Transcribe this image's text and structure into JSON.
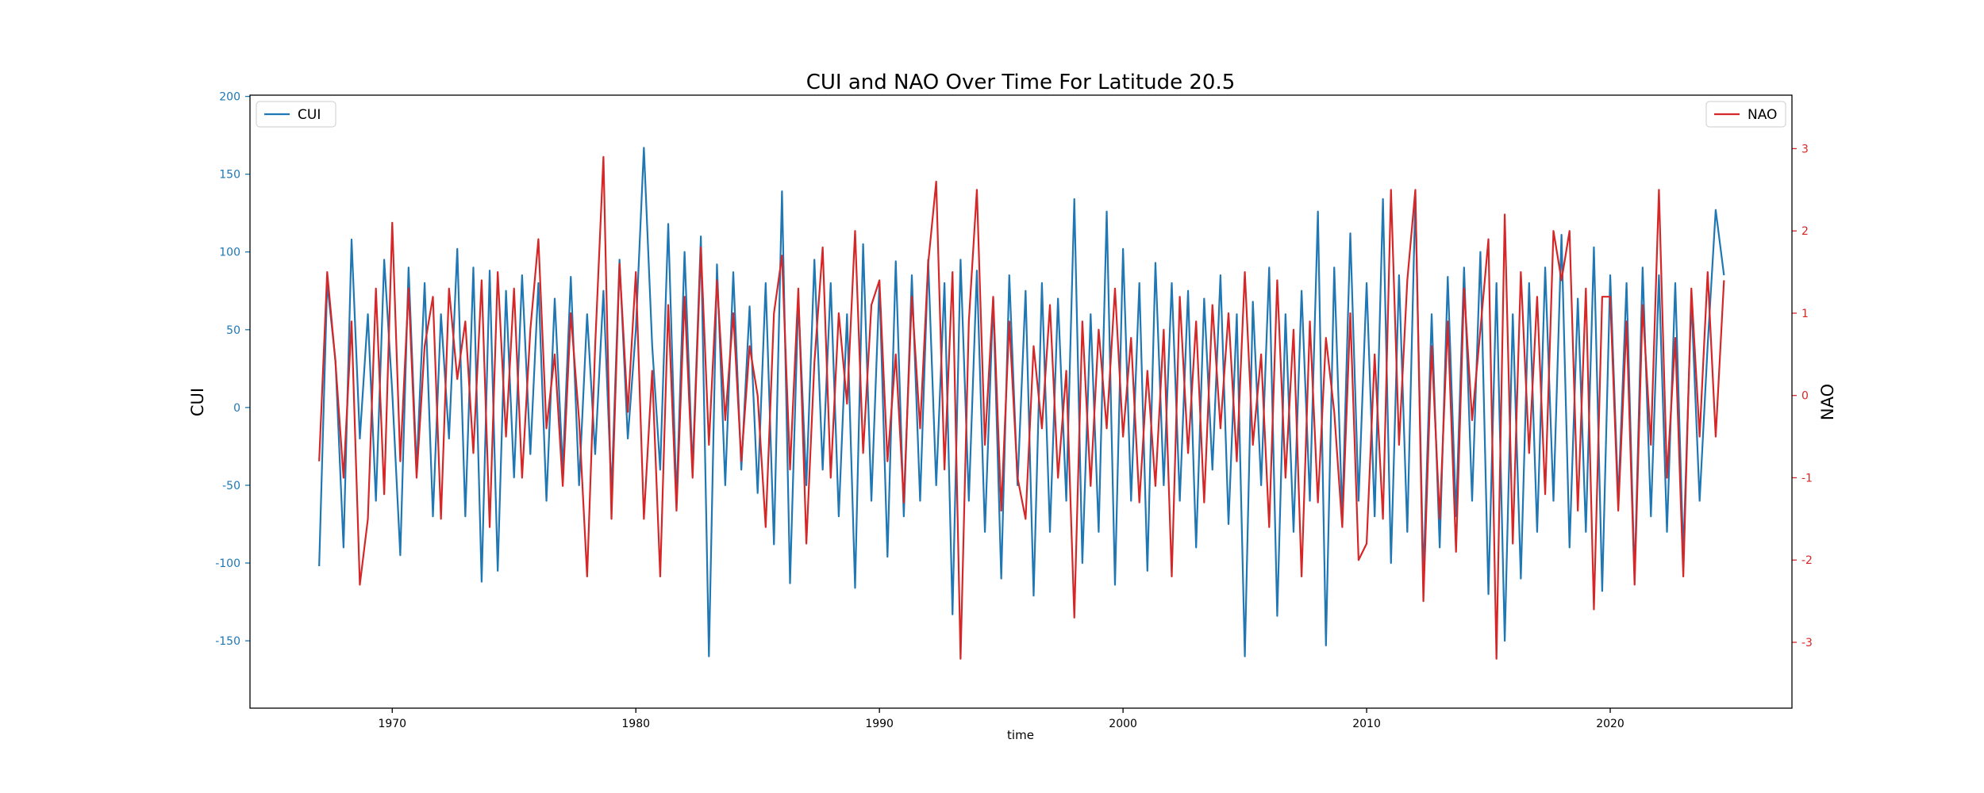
{
  "chart_data": {
    "type": "line",
    "title": "CUI and NAO Over Time For Latitude 20.5",
    "xlabel": "time",
    "ylabel": "CUI",
    "y2label": "NAO",
    "xlim": [
      1964.16,
      2027.46
    ],
    "xticks": [
      1970,
      1980,
      1990,
      2000,
      2010,
      2020
    ],
    "ylim": [
      -193.3,
      200.8
    ],
    "yticks": [
      -150,
      -100,
      -50,
      0,
      50,
      100,
      150,
      200
    ],
    "y2lim": [
      -3.8,
      3.65
    ],
    "y2ticks": [
      -3,
      -2,
      -1,
      0,
      1,
      2,
      3
    ],
    "x": [
      1967,
      1967.33,
      1967.67,
      1968,
      1968.33,
      1968.67,
      1969,
      1969.33,
      1969.67,
      1970,
      1970.33,
      1970.67,
      1971,
      1971.33,
      1971.67,
      1972,
      1972.33,
      1972.67,
      1973,
      1973.33,
      1973.67,
      1974,
      1974.33,
      1974.67,
      1975,
      1975.33,
      1975.67,
      1976,
      1976.33,
      1976.67,
      1977,
      1977.33,
      1977.67,
      1978,
      1978.33,
      1978.67,
      1979,
      1979.33,
      1979.67,
      1980,
      1980.33,
      1980.67,
      1981,
      1981.33,
      1981.67,
      1982,
      1982.33,
      1982.67,
      1983,
      1983.33,
      1983.67,
      1984,
      1984.33,
      1984.67,
      1985,
      1985.33,
      1985.67,
      1986,
      1986.33,
      1986.67,
      1987,
      1987.33,
      1987.67,
      1988,
      1988.33,
      1988.67,
      1989,
      1989.33,
      1989.67,
      1990,
      1990.33,
      1990.67,
      1991,
      1991.33,
      1991.67,
      1992,
      1992.33,
      1992.67,
      1993,
      1993.33,
      1993.67,
      1994,
      1994.33,
      1994.67,
      1995,
      1995.33,
      1995.67,
      1996,
      1996.33,
      1996.67,
      1997,
      1997.33,
      1997.67,
      1998,
      1998.33,
      1998.67,
      1999,
      1999.33,
      1999.67,
      2000,
      2000.33,
      2000.67,
      2001,
      2001.33,
      2001.67,
      2002,
      2002.33,
      2002.67,
      2003,
      2003.33,
      2003.67,
      2004,
      2004.33,
      2004.67,
      2005,
      2005.33,
      2005.67,
      2006,
      2006.33,
      2006.67,
      2007,
      2007.33,
      2007.67,
      2008,
      2008.33,
      2008.67,
      2009,
      2009.33,
      2009.67,
      2010,
      2010.33,
      2010.67,
      2011,
      2011.33,
      2011.67,
      2012,
      2012.33,
      2012.67,
      2013,
      2013.33,
      2013.67,
      2014,
      2014.33,
      2014.67,
      2015,
      2015.33,
      2015.67,
      2016,
      2016.33,
      2016.67,
      2017,
      2017.33,
      2017.67,
      2018,
      2018.33,
      2018.67,
      2019,
      2019.33,
      2019.67,
      2020,
      2020.33,
      2020.67,
      2021,
      2021.33,
      2021.67,
      2022,
      2022.33,
      2022.67,
      2023,
      2023.33,
      2023.67,
      2024,
      2024.33,
      2024.67
    ],
    "series": [
      {
        "name": "CUI",
        "color": "#1f77b4",
        "axis": "y",
        "legend": "upper left",
        "values": [
          -102,
          80,
          30,
          -90,
          108,
          -20,
          60,
          -60,
          95,
          10,
          -95,
          90,
          -40,
          80,
          -70,
          60,
          -20,
          102,
          -70,
          90,
          -112,
          88,
          -105,
          75,
          -45,
          85,
          -30,
          80,
          -60,
          70,
          -40,
          84,
          -50,
          60,
          -30,
          75,
          -55,
          95,
          -20,
          50,
          167,
          40,
          -40,
          118,
          -60,
          100,
          -40,
          110,
          -160,
          92,
          -50,
          87,
          -40,
          65,
          -55,
          80,
          -88,
          139,
          -113,
          70,
          -50,
          95,
          -40,
          80,
          -70,
          60,
          -116,
          105,
          -60,
          80,
          -96,
          94,
          -70,
          85,
          -60,
          95,
          -50,
          80,
          -133,
          95,
          -60,
          88,
          -80,
          70,
          -110,
          85,
          -50,
          75,
          -121,
          80,
          -80,
          70,
          -60,
          134,
          -100,
          60,
          -80,
          126,
          -114,
          102,
          -60,
          80,
          -105,
          93,
          -50,
          80,
          -60,
          75,
          -90,
          70,
          -40,
          85,
          -75,
          60,
          -160,
          68,
          -50,
          90,
          -134,
          60,
          -80,
          75,
          -60,
          126,
          -153,
          90,
          -70,
          112,
          -60,
          80,
          -70,
          134,
          -100,
          85,
          -80,
          136,
          -110,
          60,
          -90,
          84,
          -70,
          90,
          -60,
          100,
          -120,
          80,
          -150,
          60,
          -110,
          80,
          -80,
          90,
          -60,
          111,
          -90,
          70,
          -80,
          103,
          -118,
          85,
          -60,
          80,
          -110,
          90,
          -70,
          85,
          -80,
          80,
          -95,
          70,
          -60,
          40,
          127,
          85
        ]
      },
      {
        "name": "NAO",
        "color": "#d62728",
        "axis": "y2",
        "legend": "upper right",
        "values": [
          -0.8,
          1.5,
          0.4,
          -1.0,
          0.9,
          -2.3,
          -1.5,
          1.3,
          -1.2,
          2.1,
          -0.8,
          1.3,
          -1.0,
          0.6,
          1.2,
          -1.5,
          1.3,
          0.2,
          0.9,
          -0.7,
          1.4,
          -1.6,
          1.5,
          -0.5,
          1.3,
          -1.0,
          0.8,
          1.9,
          -0.4,
          0.5,
          -1.1,
          1.0,
          -0.3,
          -2.2,
          0.6,
          2.9,
          -1.5,
          1.6,
          -0.2,
          1.5,
          -1.5,
          0.3,
          -2.2,
          1.1,
          -1.4,
          1.2,
          -1.0,
          1.8,
          -0.6,
          1.4,
          -0.3,
          1.0,
          -0.8,
          0.6,
          0.0,
          -1.6,
          1.0,
          1.7,
          -0.9,
          1.3,
          -1.8,
          0.4,
          1.8,
          -1.0,
          1.0,
          -0.1,
          2.0,
          -0.7,
          1.1,
          1.4,
          -0.8,
          0.5,
          -1.3,
          1.2,
          -0.4,
          1.6,
          2.6,
          -0.9,
          1.5,
          -3.2,
          0.9,
          2.5,
          -0.6,
          1.2,
          -1.4,
          0.9,
          -1.0,
          -1.5,
          0.6,
          -0.4,
          1.1,
          -1.0,
          0.3,
          -2.7,
          0.9,
          -1.1,
          0.8,
          -0.4,
          1.3,
          -0.5,
          0.7,
          -1.3,
          0.3,
          -1.1,
          0.8,
          -2.2,
          1.2,
          -0.7,
          0.9,
          -1.3,
          1.1,
          -0.4,
          1.0,
          -0.8,
          1.5,
          -0.6,
          0.5,
          -1.6,
          1.4,
          -1.0,
          0.8,
          -2.2,
          0.9,
          -1.3,
          0.7,
          -0.2,
          -1.6,
          1.0,
          -2.0,
          -1.8,
          0.5,
          -1.5,
          2.5,
          -0.6,
          1.4,
          2.5,
          -2.5,
          0.6,
          -1.5,
          0.9,
          -1.9,
          1.3,
          -0.3,
          0.8,
          1.9,
          -3.2,
          2.2,
          -1.8,
          1.5,
          -0.7,
          1.2,
          -1.2,
          2.0,
          1.4,
          2.0,
          -1.4,
          1.3,
          -2.6,
          1.2,
          1.2,
          -1.4,
          0.9,
          -2.3,
          1.1,
          -0.6,
          2.5,
          -1.0,
          0.7,
          -2.2,
          1.3,
          -0.5,
          1.5,
          -0.5,
          1.4
        ]
      }
    ]
  }
}
